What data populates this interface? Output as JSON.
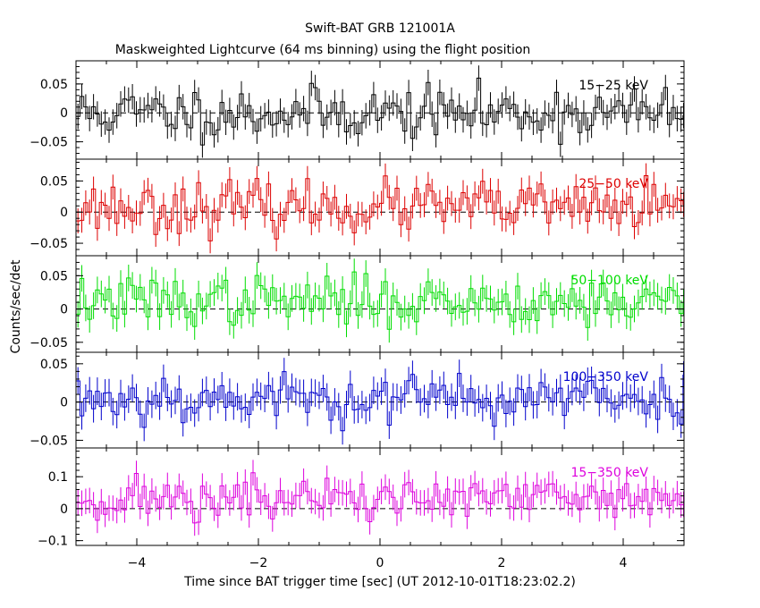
{
  "title": "Swift-BAT GRB 121001A",
  "subtitle": "Maskweighted Lightcurve (64 ms binning) using the flight position",
  "xlabel": "Time since BAT trigger time [sec] (UT 2012-10-01T18:23:02.2)",
  "ylabel": "Counts/sec/det",
  "x_ticks": [
    "−4",
    "−2",
    "0",
    "2",
    "4"
  ],
  "x_tick_values": [
    -4,
    -2,
    0,
    2,
    4
  ],
  "chart_data": [
    {
      "type": "line",
      "band": "15−25 keV",
      "color": "#000000",
      "xlim": [
        -5,
        5
      ],
      "ylim": [
        -0.08,
        0.09
      ],
      "y_tick_values": [
        0.05,
        0,
        -0.05
      ],
      "y_tick_labels": [
        "0.05",
        "0",
        "−0.05"
      ],
      "noise": 0.022,
      "mean": 0.0,
      "err": 0.022,
      "seed": 11
    },
    {
      "type": "line",
      "band": "25−50 keV",
      "color": "#dd0000",
      "xlim": [
        -5,
        5
      ],
      "ylim": [
        -0.07,
        0.085
      ],
      "y_tick_values": [
        0.05,
        0,
        -0.05
      ],
      "y_tick_labels": [
        "0.05",
        "0",
        "−0.05"
      ],
      "noise": 0.02,
      "mean": 0.008,
      "err": 0.02,
      "seed": 23
    },
    {
      "type": "line",
      "band": "50−100 keV",
      "color": "#00dd00",
      "xlim": [
        -5,
        5
      ],
      "ylim": [
        -0.065,
        0.08
      ],
      "y_tick_values": [
        0.05,
        0,
        -0.05
      ],
      "y_tick_labels": [
        "0.05",
        "0",
        "−0.05"
      ],
      "noise": 0.018,
      "mean": 0.012,
      "err": 0.02,
      "seed": 37
    },
    {
      "type": "line",
      "band": "100−350 keV",
      "color": "#0000cc",
      "xlim": [
        -5,
        5
      ],
      "ylim": [
        -0.06,
        0.065
      ],
      "y_tick_values": [
        0.05,
        0,
        -0.05
      ],
      "y_tick_labels": [
        "0.05",
        "0",
        "−0.05"
      ],
      "noise": 0.016,
      "mean": 0.005,
      "err": 0.018,
      "seed": 53
    },
    {
      "type": "line",
      "band": "15−350 keV",
      "color": "#dd00dd",
      "xlim": [
        -5,
        5
      ],
      "ylim": [
        -0.115,
        0.19
      ],
      "y_tick_values": [
        0.1,
        0,
        -0.1
      ],
      "y_tick_labels": [
        "0.1",
        "0",
        "−0.1"
      ],
      "noise": 0.035,
      "mean": 0.03,
      "err": 0.04,
      "seed": 71
    }
  ]
}
